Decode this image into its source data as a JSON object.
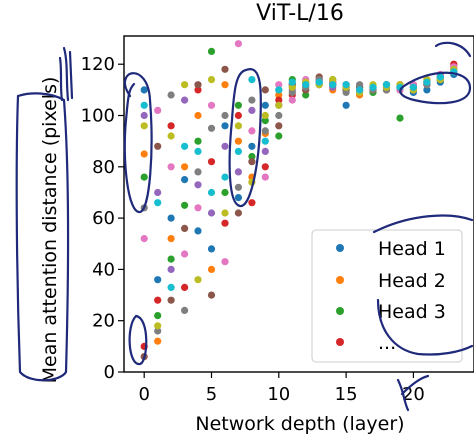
{
  "chart_data": {
    "type": "scatter",
    "title": "ViT-L/16",
    "xlabel": "Network depth (layer)",
    "ylabel": "Mean attention distance (pixels)",
    "xlim": [
      -1.5,
      24.5
    ],
    "ylim": [
      0,
      131
    ],
    "xticks": [
      0,
      5,
      10,
      15,
      20
    ],
    "yticks": [
      0,
      20,
      40,
      60,
      80,
      100,
      120
    ],
    "grid": false,
    "legend": {
      "position": "bottom-right",
      "entries": [
        "Head 1",
        "Head 2",
        "Head 3",
        "..."
      ]
    },
    "series": [
      {
        "name": "Head 1",
        "color": "#1f77b4",
        "x": [
          0,
          1,
          2,
          3,
          4,
          5,
          6,
          7,
          8,
          9,
          10,
          11,
          12,
          13,
          14,
          15,
          16,
          17,
          18,
          19,
          20,
          21,
          22,
          23
        ],
        "y": [
          110,
          36,
          60,
          75,
          55,
          48,
          96,
          68,
          88,
          104,
          110,
          112,
          112,
          113,
          112,
          104,
          110,
          110,
          112,
          111,
          109,
          110,
          113,
          116
        ]
      },
      {
        "name": "Head 2",
        "color": "#ff7f0e",
        "x": [
          0,
          1,
          2,
          3,
          4,
          5,
          6,
          7,
          8,
          9,
          10,
          11,
          12,
          13,
          14,
          15,
          16,
          17,
          18,
          19,
          20,
          21,
          22,
          23
        ],
        "y": [
          85,
          12,
          52,
          80,
          100,
          40,
          112,
          90,
          76,
          93,
          108,
          111,
          113,
          115,
          110,
          112,
          108,
          111,
          110,
          110,
          110,
          112,
          115,
          119
        ]
      },
      {
        "name": "Head 3",
        "color": "#2ca02c",
        "x": [
          0,
          1,
          2,
          3,
          4,
          5,
          6,
          7,
          8,
          9,
          10,
          11,
          12,
          13,
          14,
          15,
          16,
          17,
          18,
          19,
          20,
          21,
          22,
          23
        ],
        "y": [
          76,
          22,
          44,
          65,
          90,
          125,
          70,
          104,
          84,
          98,
          92,
          114,
          108,
          112,
          114,
          110,
          111,
          109,
          112,
          99,
          111,
          113,
          114,
          117
        ]
      },
      {
        "name": "",
        "color": "#d62728",
        "x": [
          0,
          1,
          2,
          3,
          4,
          5,
          6,
          7,
          8,
          9,
          10,
          11,
          12,
          13,
          14,
          15,
          16,
          17,
          18,
          19,
          20,
          21,
          22,
          23
        ],
        "y": [
          10,
          28,
          96,
          33,
          110,
          82,
          58,
          100,
          66,
          80,
          106,
          108,
          110,
          114,
          113,
          111,
          110,
          110,
          111,
          112,
          112,
          114,
          116,
          120
        ]
      },
      {
        "name": "",
        "color": "#9467bd",
        "x": [
          0,
          1,
          2,
          3,
          4,
          5,
          6,
          7,
          8,
          9,
          10,
          11,
          12,
          13,
          14,
          15,
          16,
          17,
          18,
          19,
          20,
          21,
          22,
          23
        ],
        "y": [
          100,
          70,
          40,
          106,
          73,
          62,
          88,
          78,
          102,
          86,
          104,
          110,
          112,
          113,
          111,
          112,
          109,
          111,
          110,
          111,
          110,
          113,
          115,
          118
        ]
      },
      {
        "name": "",
        "color": "#8c564b",
        "x": [
          0,
          1,
          2,
          3,
          4,
          5,
          6,
          7,
          8,
          9,
          10,
          11,
          12,
          13,
          14,
          15,
          16,
          17,
          18,
          19,
          20,
          21,
          22,
          23
        ],
        "y": [
          6,
          88,
          28,
          56,
          112,
          30,
          118,
          62,
          82,
          110,
          96,
          112,
          110,
          115,
          112,
          110,
          111,
          110,
          112,
          110,
          111,
          112,
          114,
          117
        ]
      },
      {
        "name": "",
        "color": "#e377c2",
        "x": [
          0,
          1,
          2,
          3,
          4,
          5,
          6,
          7,
          8,
          9,
          10,
          11,
          12,
          13,
          14,
          15,
          16,
          17,
          18,
          19,
          20,
          21,
          22,
          23
        ],
        "y": [
          52,
          102,
          80,
          46,
          64,
          104,
          43,
          128,
          94,
          76,
          112,
          106,
          114,
          112,
          113,
          111,
          110,
          111,
          111,
          110,
          112,
          113,
          116,
          119
        ]
      },
      {
        "name": "",
        "color": "#7f7f7f",
        "x": [
          0,
          1,
          2,
          3,
          4,
          5,
          6,
          7,
          8,
          9,
          10,
          11,
          12,
          13,
          14,
          15,
          16,
          17,
          18,
          19,
          20,
          21,
          22,
          23
        ],
        "y": [
          64,
          16,
          108,
          24,
          78,
          95,
          100,
          72,
          106,
          94,
          100,
          109,
          111,
          114,
          112,
          109,
          112,
          110,
          110,
          111,
          111,
          112,
          115,
          118
        ]
      },
      {
        "name": "",
        "color": "#bcbd22",
        "x": [
          0,
          1,
          2,
          3,
          4,
          5,
          6,
          7,
          8,
          9,
          10,
          11,
          12,
          13,
          14,
          15,
          16,
          17,
          18,
          19,
          20,
          21,
          22,
          23
        ],
        "y": [
          96,
          18,
          92,
          112,
          36,
          114,
          62,
          96,
          74,
          100,
          104,
          111,
          113,
          112,
          114,
          111,
          109,
          112,
          111,
          112,
          110,
          114,
          114,
          118
        ]
      },
      {
        "name": "",
        "color": "#17becf",
        "x": [
          0,
          1,
          2,
          3,
          4,
          5,
          6,
          7,
          8,
          9,
          10,
          11,
          12,
          13,
          14,
          15,
          16,
          17,
          18,
          19,
          20,
          21,
          22,
          23
        ],
        "y": [
          104,
          66,
          33,
          88,
          86,
          70,
          76,
          86,
          114,
          90,
          110,
          113,
          112,
          113,
          112,
          112,
          110,
          111,
          112,
          111,
          111,
          113,
          115,
          117
        ]
      }
    ]
  }
}
